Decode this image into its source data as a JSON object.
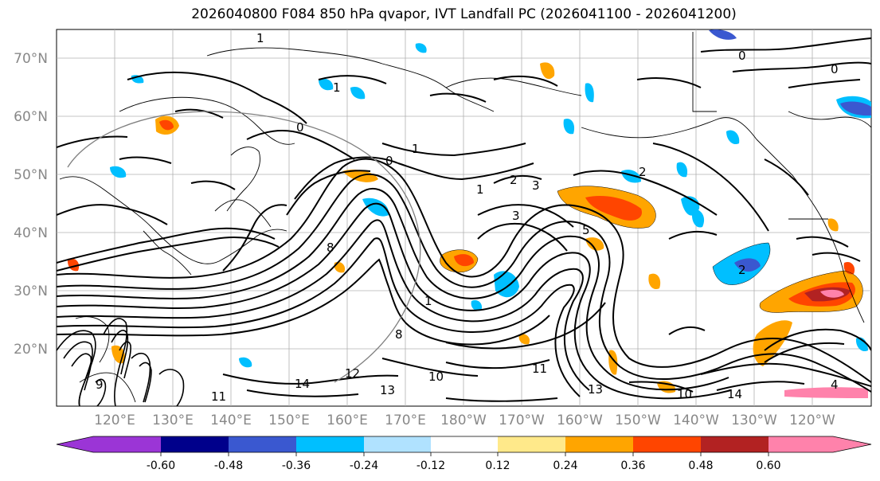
{
  "title": "2026040800 F084 850 hPa qvapor, IVT Landfall PC (2026041100 - 2026041200)",
  "lat_ticks": [
    "70°N",
    "60°N",
    "50°N",
    "40°N",
    "30°N",
    "20°N"
  ],
  "lon_ticks": [
    "120°E",
    "130°E",
    "140°E",
    "150°E",
    "160°E",
    "170°E",
    "180°W",
    "170°W",
    "160°W",
    "150°W",
    "140°W",
    "130°W",
    "120°W"
  ],
  "contour_labels": [
    "1",
    "0",
    "0",
    "1",
    "2",
    "3",
    "1",
    "2",
    "3",
    "5",
    "8",
    "1",
    "8",
    "10",
    "11",
    "12",
    "13",
    "14",
    "11",
    "13",
    "10",
    "14",
    "4",
    "9",
    "0",
    "0",
    "1",
    "2"
  ],
  "colorbar": {
    "tick_labels": [
      "-0.60",
      "-0.48",
      "-0.36",
      "-0.24",
      "-0.12",
      "0.12",
      "0.24",
      "0.36",
      "0.48",
      "0.60"
    ],
    "colors": [
      "#9b35d6",
      "#00008b",
      "#3a58d0",
      "#00bfff",
      "#b0e2ff",
      "#ffffff",
      "#ffe98a",
      "#ffa500",
      "#ff4500",
      "#b22222",
      "#ff82ab"
    ]
  }
}
